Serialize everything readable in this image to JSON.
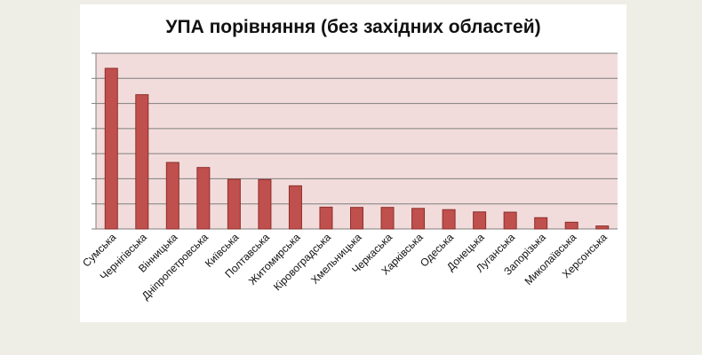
{
  "chart_data": {
    "type": "bar",
    "title": "УПА порівняння (без західних областей)",
    "xlabel": "",
    "ylabel": "",
    "categories": [
      "Сумська",
      "Чернігівська",
      "Вінницька",
      "Дніпропетровська",
      "Київська",
      "Полтавська",
      "Житомирська",
      "Кіровоградська",
      "Хмельницька",
      "Черкаська",
      "Харківська",
      "Одеська",
      "Донецька",
      "Луганська",
      "Запорізька",
      "Миколаївська",
      "Херсонська"
    ],
    "values": [
      6.4,
      5.35,
      2.65,
      2.45,
      1.98,
      1.97,
      1.72,
      0.87,
      0.86,
      0.86,
      0.82,
      0.77,
      0.68,
      0.67,
      0.45,
      0.27,
      0.12
    ],
    "ylim": [
      0,
      7
    ],
    "grid": true,
    "legend": "none",
    "colors": {
      "bar": "#c0504d",
      "bar_edge": "#8c2f2c",
      "plot_bg": "#f2dcdb",
      "grid": "#7f7f7f"
    }
  }
}
